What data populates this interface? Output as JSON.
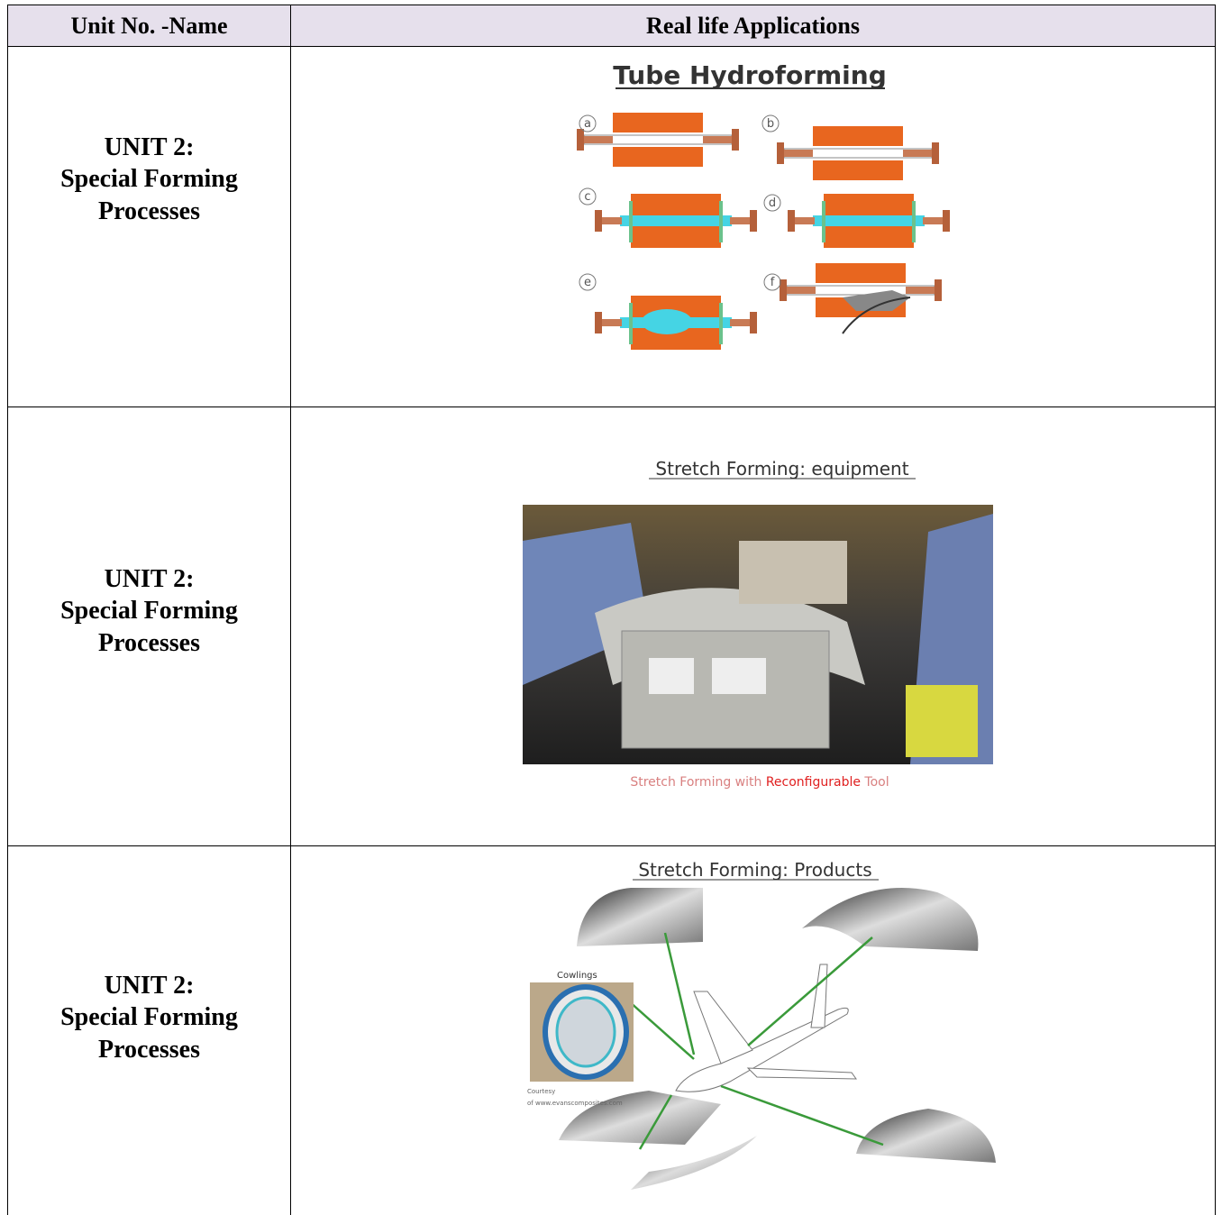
{
  "table": {
    "header": [
      "Unit No. -Name",
      "Real life Applications"
    ],
    "rows": [
      {
        "unit": [
          "UNIT 2:",
          "Special Forming",
          "Processes"
        ],
        "figure": {
          "title": "Tube Hydroforming",
          "labels": [
            "a",
            "b",
            "c",
            "d",
            "e",
            "f"
          ]
        }
      },
      {
        "unit": [
          "UNIT 2:",
          "Special Forming",
          "Processes"
        ],
        "figure": {
          "title": "Stretch Forming: equipment",
          "caption": [
            "Stretch Forming with ",
            "Reconfigurable",
            " Tool"
          ]
        }
      },
      {
        "unit": [
          "UNIT 2:",
          "Special Forming",
          "Processes"
        ],
        "figure": {
          "title": "Stretch Forming: Products",
          "labels": [
            "Cowlings",
            "Courtesy",
            "of www.evanscomposites.com"
          ]
        }
      }
    ]
  }
}
